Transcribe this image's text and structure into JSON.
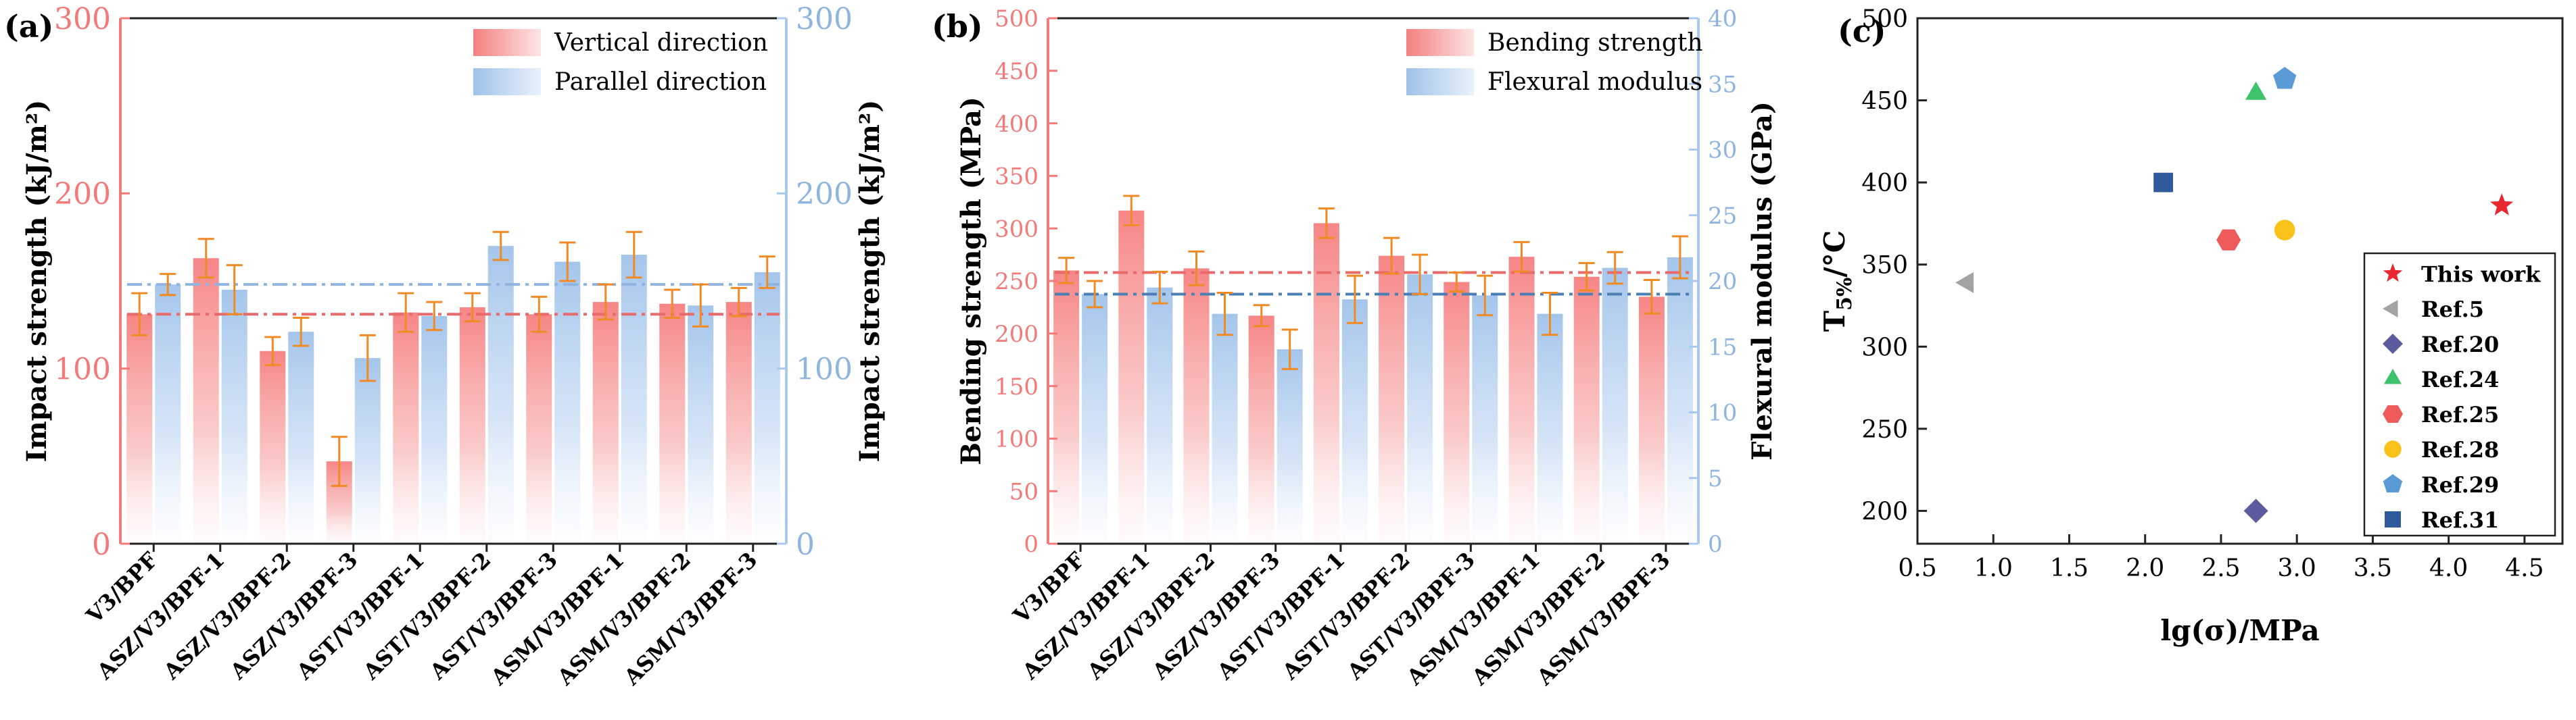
{
  "chart_data": [
    {
      "panel_label": "(a)",
      "type": "bar",
      "categories": [
        "V3/BPF",
        "ASZ/V3/BPF-1",
        "ASZ/V3/BPF-2",
        "ASZ/V3/BPF-3",
        "AST/V3/BPF-1",
        "AST/V3/BPF-2",
        "AST/V3/BPF-3",
        "ASM/V3/BPF-1",
        "ASM/V3/BPF-2",
        "ASM/V3/BPF-3"
      ],
      "ylabel": "Impact strength (kJ/m²)",
      "ylabel_right": "Impact strength (kJ/m²)",
      "ylim": [
        0,
        300
      ],
      "yticks": [
        "0",
        "100",
        "200",
        "300"
      ],
      "ylim_right": [
        0,
        300
      ],
      "yticks_right": [
        "0",
        "100",
        "200",
        "300"
      ],
      "legend_position": "top-right",
      "series": [
        {
          "name": "Vertical direction",
          "axis": "left",
          "color": "#f47a7a",
          "values": [
            131,
            163,
            110,
            47,
            132,
            135,
            131,
            138,
            137,
            138
          ],
          "errors": [
            12,
            11,
            8,
            14,
            11,
            8,
            10,
            10,
            8,
            8
          ],
          "mean_line": 131
        },
        {
          "name": "Parallel direction",
          "axis": "right",
          "color": "#a8c8ec",
          "values": [
            148,
            145,
            121,
            106,
            130,
            170,
            161,
            165,
            136,
            155
          ],
          "errors": [
            6,
            14,
            8,
            13,
            8,
            8,
            11,
            13,
            12,
            9
          ],
          "mean_line": 148
        }
      ]
    },
    {
      "panel_label": "(b)",
      "type": "bar",
      "categories": [
        "V3/BPF",
        "ASZ/V3/BPF-1",
        "ASZ/V3/BPF-2",
        "ASZ/V3/BPF-3",
        "AST/V3/BPF-1",
        "AST/V3/BPF-2",
        "AST/V3/BPF-3",
        "ASM/V3/BPF-1",
        "ASM/V3/BPF-2",
        "ASM/V3/BPF-3"
      ],
      "ylabel": "Bending strength (MPa)",
      "ylabel_right": "Flexural modulus (GPa)",
      "ylim": [
        0,
        500
      ],
      "yticks": [
        "0",
        "50",
        "100",
        "150",
        "200",
        "250",
        "300",
        "350",
        "400",
        "450",
        "500"
      ],
      "ylim_right": [
        0,
        40
      ],
      "yticks_right": [
        "0",
        "5",
        "10",
        "15",
        "20",
        "25",
        "30",
        "35",
        "40"
      ],
      "legend_position": "top-right",
      "series": [
        {
          "name": "Bending strength",
          "axis": "left",
          "color": "#f47a7a",
          "values": [
            260,
            317,
            262,
            217,
            305,
            274,
            249,
            273,
            254,
            235
          ],
          "errors": [
            12,
            14,
            16,
            10,
            14,
            17,
            9,
            14,
            13,
            16
          ],
          "mean_line": 258
        },
        {
          "name": "Flexural modulus",
          "axis": "right",
          "color": "#a8c8ec",
          "values": [
            19,
            19.5,
            17.5,
            14.8,
            18.6,
            20.5,
            18.9,
            17.5,
            21,
            21.8
          ],
          "errors": [
            1,
            1.2,
            1.6,
            1.5,
            1.8,
            1.5,
            1.5,
            1.6,
            1.2,
            1.6
          ],
          "mean_line": 19
        }
      ]
    },
    {
      "panel_label": "(c)",
      "type": "scatter",
      "xlabel": "lg(σ)/MPa",
      "ylabel_main": "T",
      "ylabel_sub": "5%",
      "ylabel_rest": "/°C",
      "xlim": [
        0.5,
        4.75
      ],
      "ylim": [
        180,
        500
      ],
      "xticks": [
        "0.5",
        "1.0",
        "1.5",
        "2.0",
        "2.5",
        "3.0",
        "3.5",
        "4.0",
        "4.5"
      ],
      "yticks": [
        "200",
        "250",
        "300",
        "350",
        "400",
        "450",
        "500"
      ],
      "legend_position": "bottom-right",
      "points": [
        {
          "name": "This work",
          "x": 4.35,
          "y": 386,
          "marker": "star",
          "color": "#e8272e"
        },
        {
          "name": "Ref.5",
          "x": 0.83,
          "y": 339,
          "marker": "triangle-left",
          "color": "#a3a3a3"
        },
        {
          "name": "Ref.20",
          "x": 2.73,
          "y": 200,
          "marker": "diamond",
          "color": "#5b5b9e"
        },
        {
          "name": "Ref.24",
          "x": 2.73,
          "y": 454,
          "marker": "triangle-up",
          "color": "#3cc36b"
        },
        {
          "name": "Ref.25",
          "x": 2.55,
          "y": 365,
          "marker": "hexagon",
          "color": "#ef5b5b"
        },
        {
          "name": "Ref.28",
          "x": 2.92,
          "y": 371,
          "marker": "circle",
          "color": "#f8c21a"
        },
        {
          "name": "Ref.29",
          "x": 2.92,
          "y": 463,
          "marker": "pentagon",
          "color": "#5b9bd5"
        },
        {
          "name": "Ref.31",
          "x": 2.12,
          "y": 400,
          "marker": "square",
          "color": "#2e5a9c"
        }
      ]
    }
  ]
}
